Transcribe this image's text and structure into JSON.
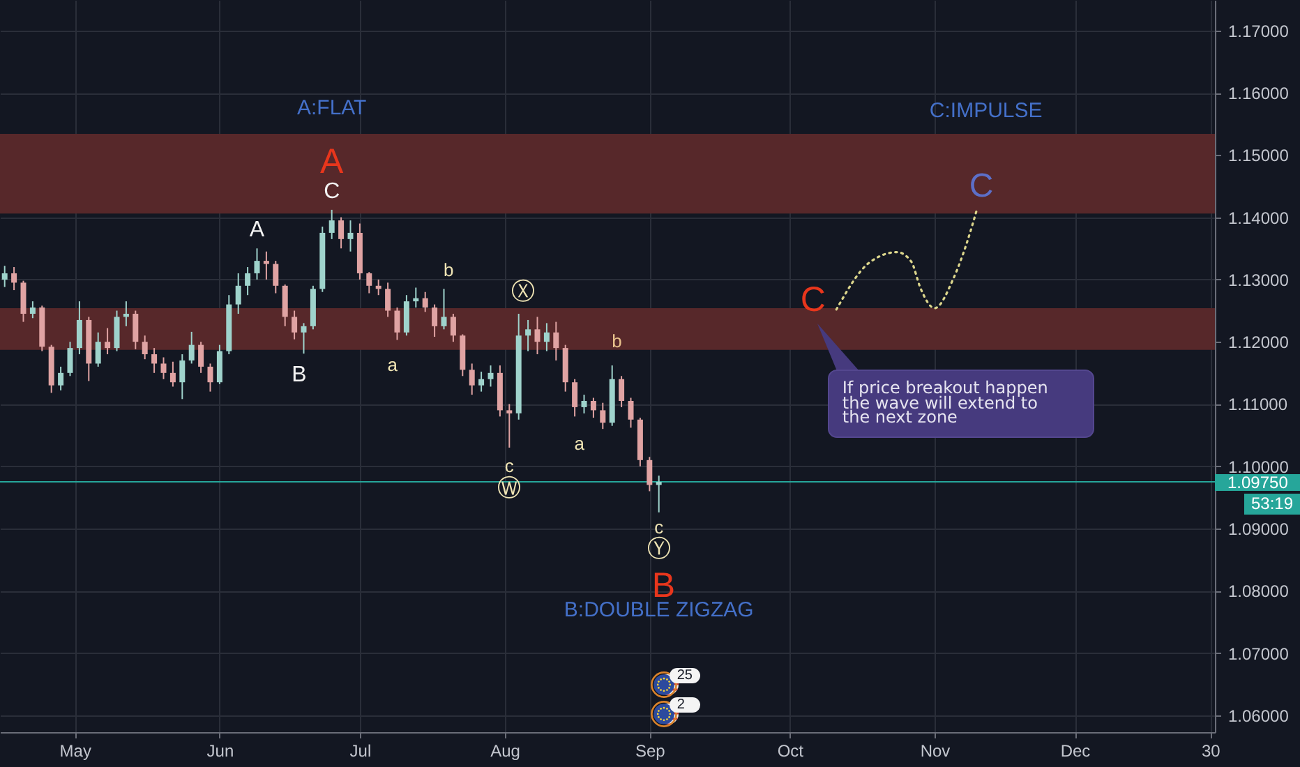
{
  "chart_data": {
    "type": "candlestick",
    "x": [
      "--04-16",
      "--04-18",
      "--04-20",
      "--04-22",
      "--04-24",
      "--04-26",
      "--04-28",
      "--04-30",
      "--05-02",
      "--05-04",
      "--05-06",
      "--05-08",
      "--05-10",
      "--05-12",
      "--05-14",
      "--05-16",
      "--05-18",
      "--05-20",
      "--05-22",
      "--05-24",
      "--05-26",
      "--05-28",
      "--05-30",
      "--06-01",
      "--06-03",
      "--06-05",
      "--06-07",
      "--06-09",
      "--06-11",
      "--06-13",
      "--06-15",
      "--06-17",
      "--06-19",
      "--06-21",
      "--06-23",
      "--06-25",
      "--06-27",
      "--06-29",
      "--07-01",
      "--07-03",
      "--07-05",
      "--07-07",
      "--07-09",
      "--07-11",
      "--07-13",
      "--07-15",
      "--07-17",
      "--07-19",
      "--07-21",
      "--07-23",
      "--07-25",
      "--07-27",
      "--07-29",
      "--07-31",
      "--08-02",
      "--08-04",
      "--08-06",
      "--08-08",
      "--08-10",
      "--08-12",
      "--08-14",
      "--08-16",
      "--08-18",
      "--08-20",
      "--08-22",
      "--08-24",
      "--08-26",
      "--08-28",
      "--08-30",
      "--09-01",
      "--09-03"
    ],
    "ohlc": [
      [
        1.13,
        1.1322,
        1.1288,
        1.131
      ],
      [
        1.131,
        1.132,
        1.1283,
        1.1295
      ],
      [
        1.1295,
        1.1298,
        1.1232,
        1.1245
      ],
      [
        1.1245,
        1.1265,
        1.1238,
        1.1255
      ],
      [
        1.1255,
        1.1258,
        1.1185,
        1.1192
      ],
      [
        1.1192,
        1.1195,
        1.1118,
        1.113
      ],
      [
        1.113,
        1.116,
        1.1122,
        1.115
      ],
      [
        1.115,
        1.12,
        1.1145,
        1.119
      ],
      [
        1.119,
        1.1265,
        1.118,
        1.1235
      ],
      [
        1.1235,
        1.124,
        1.1137,
        1.1165
      ],
      [
        1.1165,
        1.1215,
        1.116,
        1.12
      ],
      [
        1.12,
        1.1222,
        1.118,
        1.119
      ],
      [
        1.119,
        1.125,
        1.1185,
        1.124
      ],
      [
        1.124,
        1.1265,
        1.1225,
        1.1245
      ],
      [
        1.1245,
        1.125,
        1.1188,
        1.12
      ],
      [
        1.12,
        1.121,
        1.1172,
        1.118
      ],
      [
        1.118,
        1.119,
        1.115,
        1.1165
      ],
      [
        1.1165,
        1.1175,
        1.114,
        1.115
      ],
      [
        1.115,
        1.1168,
        1.1128,
        1.1135
      ],
      [
        1.1135,
        1.118,
        1.1108,
        1.117
      ],
      [
        1.117,
        1.1216,
        1.1165,
        1.1195
      ],
      [
        1.1195,
        1.12,
        1.115,
        1.116
      ],
      [
        1.116,
        1.1165,
        1.112,
        1.1135
      ],
      [
        1.1135,
        1.1195,
        1.1132,
        1.1185
      ],
      [
        1.1185,
        1.1275,
        1.118,
        1.126
      ],
      [
        1.126,
        1.131,
        1.1245,
        1.129
      ],
      [
        1.129,
        1.132,
        1.1275,
        1.131
      ],
      [
        1.131,
        1.135,
        1.13,
        1.133
      ],
      [
        1.133,
        1.1345,
        1.13,
        1.1325
      ],
      [
        1.1325,
        1.133,
        1.1278,
        1.129
      ],
      [
        1.129,
        1.1292,
        1.1225,
        1.124
      ],
      [
        1.124,
        1.125,
        1.1204,
        1.1215
      ],
      [
        1.1215,
        1.123,
        1.1181,
        1.1225
      ],
      [
        1.1225,
        1.129,
        1.122,
        1.1285
      ],
      [
        1.1285,
        1.1385,
        1.128,
        1.1375
      ],
      [
        1.1375,
        1.1412,
        1.1365,
        1.1395
      ],
      [
        1.1395,
        1.14,
        1.135,
        1.1365
      ],
      [
        1.1365,
        1.1395,
        1.1345,
        1.1375
      ],
      [
        1.1375,
        1.139,
        1.13,
        1.131
      ],
      [
        1.131,
        1.1312,
        1.1278,
        1.129
      ],
      [
        1.129,
        1.13,
        1.1275,
        1.1285
      ],
      [
        1.1285,
        1.1295,
        1.124,
        1.125
      ],
      [
        1.125,
        1.1255,
        1.1203,
        1.1215
      ],
      [
        1.1215,
        1.1275,
        1.121,
        1.1265
      ],
      [
        1.1265,
        1.1287,
        1.1255,
        1.127
      ],
      [
        1.127,
        1.128,
        1.1248,
        1.1255
      ],
      [
        1.1255,
        1.126,
        1.1208,
        1.1225
      ],
      [
        1.1225,
        1.1285,
        1.122,
        1.124
      ],
      [
        1.124,
        1.1245,
        1.12,
        1.121
      ],
      [
        1.121,
        1.1212,
        1.1145,
        1.1155
      ],
      [
        1.1155,
        1.1165,
        1.1115,
        1.113
      ],
      [
        1.113,
        1.1152,
        1.112,
        1.114
      ],
      [
        1.114,
        1.1162,
        1.1128,
        1.115
      ],
      [
        1.115,
        1.1162,
        1.108,
        1.109
      ],
      [
        1.109,
        1.11,
        1.103,
        1.1085
      ],
      [
        1.1085,
        1.1245,
        1.1075,
        1.121
      ],
      [
        1.121,
        1.1235,
        1.1185,
        1.122
      ],
      [
        1.122,
        1.124,
        1.118,
        1.12
      ],
      [
        1.12,
        1.123,
        1.1185,
        1.1215
      ],
      [
        1.1215,
        1.1232,
        1.117,
        1.119
      ],
      [
        1.119,
        1.1195,
        1.112,
        1.1135
      ],
      [
        1.1135,
        1.114,
        1.108,
        1.1095
      ],
      [
        1.1095,
        1.1115,
        1.1085,
        1.1105
      ],
      [
        1.1105,
        1.111,
        1.1078,
        1.109
      ],
      [
        1.109,
        1.1102,
        1.106,
        1.107
      ],
      [
        1.107,
        1.1162,
        1.1065,
        1.114
      ],
      [
        1.114,
        1.1145,
        1.1095,
        1.1105
      ],
      [
        1.1105,
        1.111,
        1.1062,
        1.1075
      ],
      [
        1.1075,
        1.1078,
        1.1,
        1.101
      ],
      [
        1.101,
        1.1015,
        1.096,
        1.097
      ],
      [
        1.097,
        1.0985,
        1.0926,
        1.0975
      ]
    ],
    "colors": [
      "#9fd3cc",
      "#e0a3a3",
      "#e0a3a3",
      "#9fd3cc",
      "#e0a3a3",
      "#e0a3a3",
      "#9fd3cc",
      "#9fd3cc",
      "#9fd3cc",
      "#e0a3a3",
      "#9fd3cc",
      "#e0a3a3",
      "#9fd3cc",
      "#9fd3cc",
      "#e0a3a3",
      "#e0a3a3",
      "#e0a3a3",
      "#e0a3a3",
      "#e0a3a3",
      "#9fd3cc",
      "#9fd3cc",
      "#e0a3a3",
      "#e0a3a3",
      "#9fd3cc",
      "#9fd3cc",
      "#9fd3cc",
      "#9fd3cc",
      "#9fd3cc",
      "#e0a3a3",
      "#e0a3a3",
      "#e0a3a3",
      "#e0a3a3",
      "#9fd3cc",
      "#9fd3cc",
      "#9fd3cc",
      "#9fd3cc",
      "#e0a3a3",
      "#9fd3cc",
      "#e0a3a3",
      "#e0a3a3",
      "#e0a3a3",
      "#e0a3a3",
      "#e0a3a3",
      "#9fd3cc",
      "#9fd3cc",
      "#e0a3a3",
      "#e0a3a3",
      "#9fd3cc",
      "#e0a3a3",
      "#e0a3a3",
      "#e0a3a3",
      "#9fd3cc",
      "#9fd3cc",
      "#e0a3a3",
      "#e0a3a3",
      "#9fd3cc",
      "#9fd3cc",
      "#e0a3a3",
      "#9fd3cc",
      "#e0a3a3",
      "#e0a3a3",
      "#e0a3a3",
      "#9fd3cc",
      "#e0a3a3",
      "#e0a3a3",
      "#9fd3cc",
      "#e0a3a3",
      "#e0a3a3",
      "#e0a3a3",
      "#e0a3a3",
      "#9fd3cc"
    ],
    "xlim": [
      "--04-15",
      "--12-31"
    ],
    "xticks": [
      {
        "value": "--05-01",
        "label": "May"
      },
      {
        "value": "--06-01",
        "label": "Jun"
      },
      {
        "value": "--07-01",
        "label": "Jul"
      },
      {
        "value": "--08-01",
        "label": "Aug"
      },
      {
        "value": "--09-01",
        "label": "Sep"
      },
      {
        "value": "--10-01",
        "label": "Oct"
      },
      {
        "value": "--11-01",
        "label": "Nov"
      },
      {
        "value": "--12-01",
        "label": "Dec"
      },
      {
        "value": "--12-30",
        "label": "30"
      }
    ],
    "ylim": [
      1.0573,
      1.1749
    ],
    "yticks": [
      {
        "value": 1.06,
        "label": "1.06000"
      },
      {
        "value": 1.07,
        "label": "1.07000"
      },
      {
        "value": 1.08,
        "label": "1.08000"
      },
      {
        "value": 1.09,
        "label": "1.09000"
      },
      {
        "value": 1.1,
        "label": "1.10000"
      },
      {
        "value": 1.11,
        "label": "1.11000"
      },
      {
        "value": 1.12,
        "label": "1.12000"
      },
      {
        "value": 1.13,
        "label": "1.13000"
      },
      {
        "value": 1.14,
        "label": "1.14000"
      },
      {
        "value": 1.15,
        "label": "1.15000"
      },
      {
        "value": 1.16,
        "label": "1.16000"
      },
      {
        "value": 1.17,
        "label": "1.17000"
      }
    ],
    "grid": true,
    "bands": [
      {
        "axis": "y",
        "from": 1.1406,
        "to": 1.1534,
        "color": "#57282a"
      },
      {
        "axis": "y",
        "from": 1.1187,
        "to": 1.1254,
        "color": "#57282a"
      }
    ],
    "ref_lines": [
      {
        "axis": "y",
        "value": 1.0975,
        "label": "1.09750",
        "color": "#26a69a"
      }
    ],
    "series": [
      {
        "type": "line",
        "color": "#dcd68c",
        "line_style": "dotted",
        "x": [
          "--10-11",
          "--10-18",
          "--10-24",
          "--10-27",
          "--10-29",
          "--11-01",
          "--11-05",
          "--11-08",
          "--11-10"
        ],
        "values": [
          1.1252,
          1.1327,
          1.1344,
          1.1329,
          1.1286,
          1.1254,
          1.1301,
          1.1361,
          1.1411
        ]
      }
    ],
    "annotations": [
      "A:FLAT",
      "C:IMPULSE",
      "B:DOUBLE ZIGZAG",
      "A",
      "C",
      "A",
      "B",
      "b",
      "a",
      "c",
      "Ⓦ",
      "Ⓧ",
      "b",
      "a",
      "c",
      "Ⓨ",
      "B",
      "C",
      "C",
      "If price breakout happen the wave will extend to the next zone",
      "53:19",
      "25",
      "2"
    ]
  }
}
